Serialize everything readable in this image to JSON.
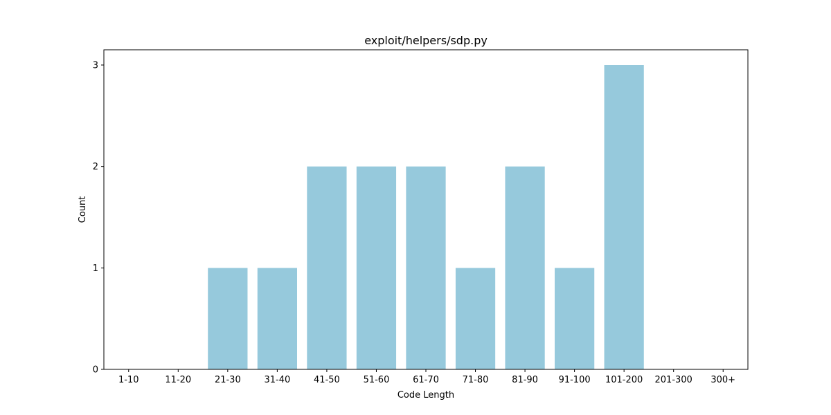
{
  "chart_data": {
    "type": "bar",
    "title": "exploit/helpers/sdp.py",
    "xlabel": "Code Length",
    "ylabel": "Count",
    "categories": [
      "1-10",
      "11-20",
      "21-30",
      "31-40",
      "41-50",
      "51-60",
      "61-70",
      "71-80",
      "81-90",
      "91-100",
      "101-200",
      "201-300",
      "300+"
    ],
    "values": [
      0,
      0,
      1,
      1,
      2,
      2,
      2,
      1,
      2,
      1,
      3,
      0,
      0
    ],
    "yticks": [
      0,
      1,
      2,
      3
    ],
    "ylim": [
      0,
      3.15
    ],
    "grid": false,
    "legend": "none",
    "bar_color": "#96c9dc"
  }
}
